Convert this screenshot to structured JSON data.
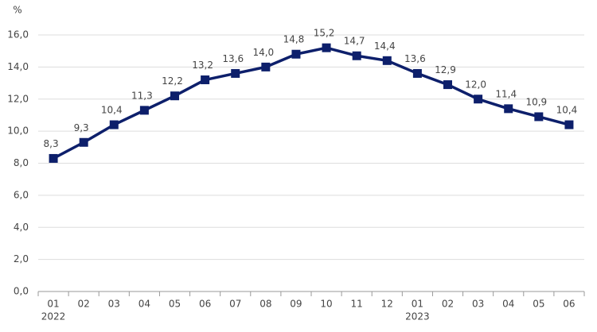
{
  "chart_data": {
    "type": "line",
    "y_unit": "%",
    "categories": [
      "01",
      "02",
      "03",
      "04",
      "05",
      "06",
      "07",
      "08",
      "09",
      "10",
      "11",
      "12",
      "01",
      "02",
      "03",
      "04",
      "05",
      "06"
    ],
    "year_labels": [
      "2022",
      null,
      null,
      null,
      null,
      null,
      null,
      null,
      null,
      null,
      null,
      null,
      "2023",
      null,
      null,
      null,
      null,
      null
    ],
    "series": [
      {
        "color": "#0d1f6b",
        "values": [
          8.3,
          9.3,
          10.4,
          11.3,
          12.2,
          13.2,
          13.6,
          14.0,
          14.8,
          15.2,
          14.7,
          14.4,
          13.6,
          12.9,
          12.0,
          11.4,
          10.9,
          10.4
        ],
        "value_labels": [
          "8,3",
          "9,3",
          "10,4",
          "11,3",
          "12,2",
          "13,2",
          "13,6",
          "14,0",
          "14,8",
          "15,2",
          "14,7",
          "14,4",
          "13,6",
          "12,9",
          "12,0",
          "11,4",
          "10,9",
          "10,4"
        ]
      }
    ],
    "ylim": [
      0,
      16
    ],
    "yticks": [
      {
        "value": 0,
        "label": "0,0"
      },
      {
        "value": 2,
        "label": "2,0"
      },
      {
        "value": 4,
        "label": "4,0"
      },
      {
        "value": 6,
        "label": "6,0"
      },
      {
        "value": 8,
        "label": "8,0"
      },
      {
        "value": 10,
        "label": "10,0"
      },
      {
        "value": 12,
        "label": "12,0"
      },
      {
        "value": 14,
        "label": "14,0"
      },
      {
        "value": 16,
        "label": "16,0"
      }
    ],
    "grid": true
  }
}
